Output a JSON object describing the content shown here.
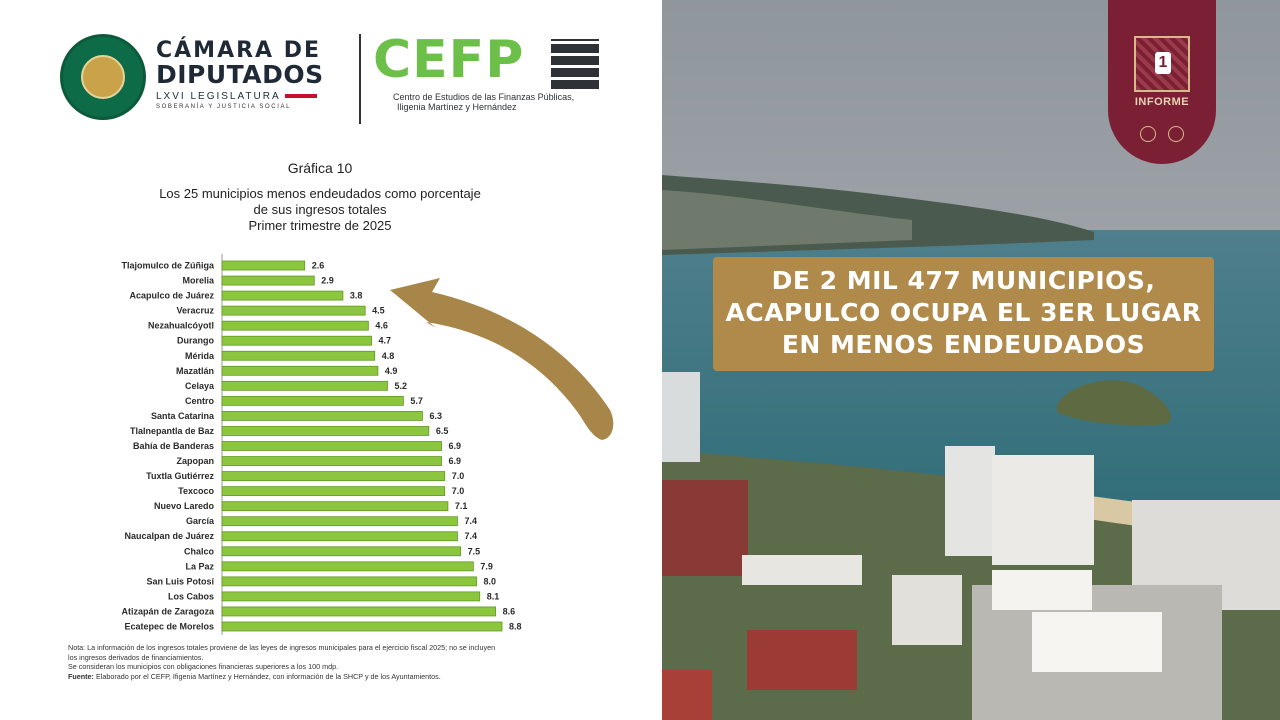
{
  "header": {
    "camara_line1": "CÁMARA DE",
    "camara_line2": "DIPUTADOS",
    "camara_line3": "LXVI LEGISLATURA",
    "camara_line4": "SOBERANÍA Y JUSTICIA SOCIAL",
    "cefp_word": "CEFP",
    "cefp_sub1": "Centro de Estudios de las Finanzas Públicas,",
    "cefp_sub2": "Iligenia Martínez y Hernández"
  },
  "chart_data": {
    "type": "bar",
    "orientation": "horizontal",
    "title": "Gráfica 10",
    "subtitle_lines": [
      "Los 25 municipios menos endeudados como porcentaje",
      "de sus ingresos totales",
      "Primer trimestre de 2025"
    ],
    "categories": [
      "Tlajomulco de Zúñiga",
      "Morelia",
      "Acapulco de Juárez",
      "Veracruz",
      "Nezahualcóyotl",
      "Durango",
      "Mérida",
      "Mazatlán",
      "Celaya",
      "Centro",
      "Santa Catarina",
      "Tlalnepantla de Baz",
      "Bahía de Banderas",
      "Zapopan",
      "Tuxtla Gutiérrez",
      "Texcoco",
      "Nuevo Laredo",
      "García",
      "Naucalpan de Juárez",
      "Chalco",
      "La Paz",
      "San Luis Potosí",
      "Los Cabos",
      "Atizapán de Zaragoza",
      "Ecatepec de Morelos"
    ],
    "values": [
      2.6,
      2.9,
      3.8,
      4.5,
      4.6,
      4.7,
      4.8,
      4.9,
      5.2,
      5.7,
      6.3,
      6.5,
      6.9,
      6.9,
      7.0,
      7.0,
      7.1,
      7.4,
      7.4,
      7.5,
      7.9,
      8.0,
      8.1,
      8.6,
      8.8
    ],
    "value_labels": [
      "2.6",
      "2.9",
      "3.8",
      "4.5",
      "4.6",
      "4.7",
      "4.8",
      "4.9",
      "5.2",
      "5.7",
      "6.3",
      "6.5",
      "6.9",
      "6.9",
      "7.0",
      "7.0",
      "7.1",
      "7.4",
      "7.4",
      "7.5",
      "7.9",
      "8.0",
      "8.1",
      "8.6",
      "8.8"
    ],
    "xlim": [
      0,
      8.8
    ],
    "grid": false,
    "bar_color": "#8cc63f",
    "bar_edge_color": "#5f9a23"
  },
  "notes": {
    "line1": "Nota: La información de los ingresos totales proviene de las leyes de ingresos municipales para el ejercicio fiscal 2025; no se incluyen",
    "line2": "los ingresos derivados de financiamientos.",
    "line3": "Se consideran los municipios con obligaciones financieras superiores a los 100 mdp.",
    "source_label": "Fuente:",
    "source_text": "Elaborado por el CEFP, Ifigenia Martínez y Hernández, con información de la SHCP y de los Ayuntamientos."
  },
  "badge": {
    "number": "1",
    "label": "INFORME",
    "color": "#7b1f34"
  },
  "banner": {
    "line1": "DE 2 MIL 477 MUNICIPIOS,",
    "line2": "ACAPULCO OCUPA EL 3ER LUGAR",
    "line3": "EN MENOS ENDEUDADOS",
    "color": "#b08a4a"
  },
  "arrow_color": "#a88548"
}
